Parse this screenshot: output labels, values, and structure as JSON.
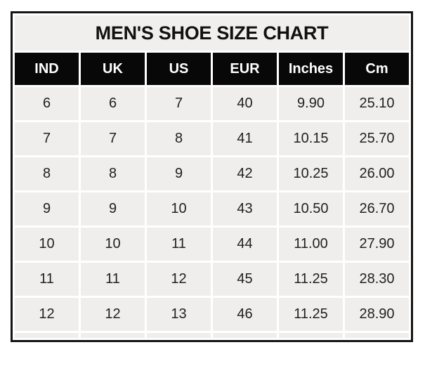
{
  "colors": {
    "frame_border": "#141414",
    "title_bg": "#f0efed",
    "header_bg": "#080808",
    "header_text": "#ffffff",
    "cell_bg": "#efeeec",
    "body_text": "#212121",
    "grid_gap": "#ffffff",
    "page_bg": "#ffffff"
  },
  "table": {
    "title": "MEN'S SHOE SIZE CHART",
    "columns": [
      "IND",
      "UK",
      "US",
      "EUR",
      "Inches",
      "Cm"
    ],
    "rows": [
      [
        "6",
        "6",
        "7",
        "40",
        "9.90",
        "25.10"
      ],
      [
        "7",
        "7",
        "8",
        "41",
        "10.15",
        "25.70"
      ],
      [
        "8",
        "8",
        "9",
        "42",
        "10.25",
        "26.00"
      ],
      [
        "9",
        "9",
        "10",
        "43",
        "10.50",
        "26.70"
      ],
      [
        "10",
        "10",
        "11",
        "44",
        "11.00",
        "27.90"
      ],
      [
        "11",
        "11",
        "12",
        "45",
        "11.25",
        "28.30"
      ],
      [
        "12",
        "12",
        "13",
        "46",
        "11.25",
        "28.90"
      ]
    ]
  },
  "chart_data": {
    "type": "table",
    "title": "MEN'S SHOE SIZE CHART",
    "columns": [
      "IND",
      "UK",
      "US",
      "EUR",
      "Inches",
      "Cm"
    ],
    "rows": [
      [
        6,
        6,
        7,
        40,
        9.9,
        25.1
      ],
      [
        7,
        7,
        8,
        41,
        10.15,
        25.7
      ],
      [
        8,
        8,
        9,
        42,
        10.25,
        26.0
      ],
      [
        9,
        9,
        10,
        43,
        10.5,
        26.7
      ],
      [
        10,
        10,
        11,
        44,
        11.0,
        27.9
      ],
      [
        11,
        11,
        12,
        45,
        11.25,
        28.3
      ],
      [
        12,
        12,
        13,
        46,
        11.25,
        28.9
      ]
    ],
    "layout_hints": {
      "title_position": "top-center",
      "header_style": "black-bar-white-text",
      "grid": "white gaps between light-gray cells",
      "outer_border": "black"
    }
  }
}
